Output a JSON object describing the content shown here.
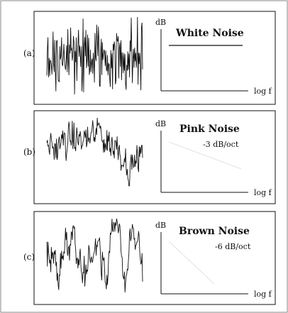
{
  "panels": [
    {
      "label": "(a)",
      "title": "White Noise",
      "slope": "",
      "y_axis_label": "dB",
      "x_axis_label": "log f",
      "spectrum": "flat",
      "waveform_type": "white"
    },
    {
      "label": "(b)",
      "title": "Pink Noise",
      "slope": "-3 dB/oct",
      "y_axis_label": "dB",
      "x_axis_label": "log f",
      "spectrum": "falling",
      "waveform_type": "pink"
    },
    {
      "label": "(c)",
      "title": "Brown Noise",
      "slope": "-6 dB/oct",
      "y_axis_label": "dB",
      "x_axis_label": "log f",
      "spectrum": "falling",
      "waveform_type": "brown"
    }
  ],
  "colors": {
    "ink": "#111111",
    "faint_line": "#e2e2e2",
    "frame": "#8a8a8a",
    "background": "#ffffff"
  }
}
